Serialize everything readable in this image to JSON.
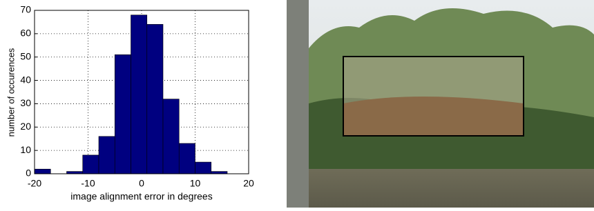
{
  "chart_data": {
    "type": "histogram",
    "xlabel": "image alignment error in degrees",
    "ylabel": "number of occurences",
    "bins": [
      -20,
      -17,
      -14,
      -11,
      -8,
      -5,
      -2,
      1,
      4,
      7,
      10,
      13,
      16
    ],
    "values": [
      2,
      0,
      1,
      8,
      16,
      51,
      68,
      64,
      32,
      13,
      5,
      1
    ],
    "color": "#000080",
    "xlim": [
      -20,
      20
    ],
    "xticks": [
      -20,
      -10,
      0,
      10,
      20
    ],
    "ylim": [
      0,
      70
    ],
    "yticks": [
      0,
      10,
      20,
      30,
      40,
      50,
      60,
      70
    ],
    "grid": true
  }
}
